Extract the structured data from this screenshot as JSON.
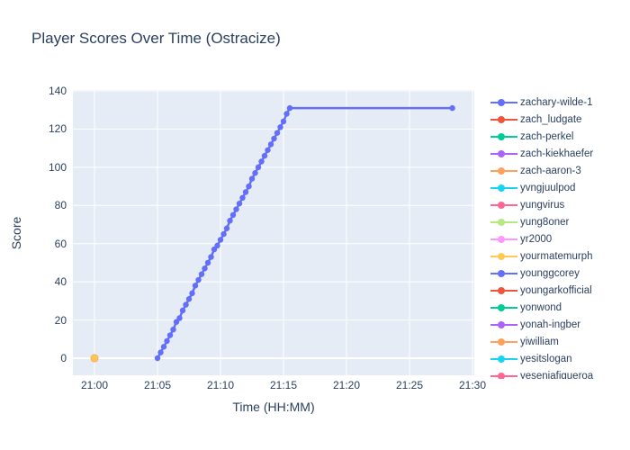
{
  "title": "Player Scores Over Time (Ostracize)",
  "x_axis": {
    "label": "Time (HH:MM)",
    "tick_labels": [
      "21:00",
      "21:05",
      "21:10",
      "21:15",
      "21:20",
      "21:25",
      "21:30"
    ],
    "tick_minutes": [
      0,
      5,
      10,
      15,
      20,
      25,
      30
    ]
  },
  "y_axis": {
    "label": "Score",
    "ticks": [
      0,
      20,
      40,
      60,
      80,
      100,
      120,
      140
    ]
  },
  "colors": {
    "paper_bg": "#ffffff",
    "plot_bg": "#e5ecf6",
    "grid": "#ffffff",
    "text": "#2a3f5f",
    "accent_line": "#636efa"
  },
  "legend": [
    {
      "label": "zachary-wilde-1",
      "color": "#636efa"
    },
    {
      "label": "zach_ludgate",
      "color": "#ef553b"
    },
    {
      "label": "zach-perkel",
      "color": "#00cc96"
    },
    {
      "label": "zach-kiekhaefer",
      "color": "#ab63fa"
    },
    {
      "label": "zach-aaron-3",
      "color": "#ffa15a"
    },
    {
      "label": "yvngjuulpod",
      "color": "#19d3f3"
    },
    {
      "label": "yungvirus",
      "color": "#ff6692"
    },
    {
      "label": "yung8oner",
      "color": "#b6e880"
    },
    {
      "label": "yr2000",
      "color": "#ff97ff"
    },
    {
      "label": "yourmatemurph",
      "color": "#fecb52"
    },
    {
      "label": "younggcorey",
      "color": "#636efa"
    },
    {
      "label": "youngarkofficial",
      "color": "#ef553b"
    },
    {
      "label": "yonwond",
      "color": "#00cc96"
    },
    {
      "label": "yonah-ingber",
      "color": "#ab63fa"
    },
    {
      "label": "yiwilliam",
      "color": "#ffa15a"
    },
    {
      "label": "yesitslogan",
      "color": "#19d3f3"
    },
    {
      "label": "yeseniafigueroa",
      "color": "#ff6692"
    }
  ],
  "chart_data": {
    "type": "line",
    "title": "Player Scores Over Time (Ostracize)",
    "xlabel": "Time (HH:MM)",
    "ylabel": "Score",
    "x_tick_labels": [
      "21:00",
      "21:05",
      "21:10",
      "21:15",
      "21:20",
      "21:25",
      "21:30"
    ],
    "ylim": [
      -9,
      141
    ],
    "xlim_minutes_after_2100": [
      -1.7,
      30.15
    ],
    "grid": true,
    "legend_position": "right",
    "series": [
      {
        "name": "zachary-wilde-1",
        "color": "#636efa",
        "mode": "lines+markers",
        "t_minutes_after_2100": [
          5.0,
          5.25,
          5.5,
          5.75,
          6.0,
          6.25,
          6.5,
          6.75,
          7.0,
          7.25,
          7.5,
          7.75,
          8.0,
          8.25,
          8.5,
          8.75,
          9.0,
          9.25,
          9.5,
          9.75,
          10.0,
          10.25,
          10.5,
          10.75,
          11.0,
          11.25,
          11.5,
          11.75,
          12.0,
          12.25,
          12.5,
          12.75,
          13.0,
          13.25,
          13.5,
          13.75,
          14.0,
          14.25,
          14.5,
          14.75,
          15.0,
          15.25,
          15.5,
          28.4
        ],
        "scores": [
          0,
          3,
          6,
          9,
          12,
          15,
          19,
          21,
          25,
          28,
          31,
          34,
          38,
          41,
          44,
          47,
          50,
          53,
          57,
          59,
          62,
          65,
          68,
          72,
          75,
          78,
          81,
          84,
          87,
          90,
          94,
          97,
          100,
          103,
          106,
          109,
          112,
          115,
          118,
          121,
          124,
          128,
          131,
          131
        ]
      },
      {
        "name": "zach_ludgate",
        "color": "#ef553b",
        "mode": "markers",
        "points": [
          [
            0,
            0
          ]
        ],
        "marker_size": 7,
        "z": 1
      },
      {
        "name": "zach-perkel",
        "color": "#00cc96",
        "mode": "markers",
        "points": [
          [
            0,
            0
          ]
        ],
        "marker_size": 7,
        "z": 1
      },
      {
        "name": "zach-kiekhaefer",
        "color": "#ab63fa",
        "mode": "markers",
        "points": [
          [
            0,
            0
          ]
        ],
        "marker_size": 7,
        "z": 1
      },
      {
        "name": "zach-aaron-3",
        "color": "#ffa15a",
        "mode": "markers",
        "points": [
          [
            0,
            0
          ]
        ],
        "marker_size": 9,
        "z": 2
      },
      {
        "name": "yvngjuulpod",
        "color": "#19d3f3",
        "mode": "markers",
        "points": [
          [
            0,
            0
          ]
        ],
        "marker_size": 7,
        "z": 1
      },
      {
        "name": "yungvirus",
        "color": "#ff6692",
        "mode": "markers",
        "points": [
          [
            0,
            0
          ]
        ],
        "marker_size": 7,
        "z": 1
      },
      {
        "name": "yung8oner",
        "color": "#b6e880",
        "mode": "markers",
        "points": [
          [
            0,
            0
          ]
        ],
        "marker_size": 7,
        "z": 1
      },
      {
        "name": "yr2000",
        "color": "#ff97ff",
        "mode": "markers",
        "points": [
          [
            0,
            0
          ]
        ],
        "marker_size": 7,
        "z": 1
      },
      {
        "name": "yourmatemurph",
        "color": "#fecb52",
        "mode": "markers",
        "points": [
          [
            0,
            0
          ]
        ],
        "marker_size": 7,
        "z": 3
      },
      {
        "name": "younggcorey",
        "color": "#636efa",
        "mode": "markers",
        "points": [
          [
            0,
            0
          ]
        ],
        "marker_size": 7,
        "z": 1
      },
      {
        "name": "youngarkofficial",
        "color": "#ef553b",
        "mode": "markers",
        "points": [
          [
            0,
            0
          ]
        ],
        "marker_size": 7,
        "z": 1
      },
      {
        "name": "yonwond",
        "color": "#00cc96",
        "mode": "markers",
        "points": [
          [
            0,
            0
          ]
        ],
        "marker_size": 7,
        "z": 1
      },
      {
        "name": "yonah-ingber",
        "color": "#ab63fa",
        "mode": "markers",
        "points": [
          [
            0,
            0
          ]
        ],
        "marker_size": 7,
        "z": 1
      },
      {
        "name": "yiwilliam",
        "color": "#ffa15a",
        "mode": "markers",
        "points": [
          [
            0,
            0
          ]
        ],
        "marker_size": 7,
        "z": 1
      },
      {
        "name": "yesitslogan",
        "color": "#19d3f3",
        "mode": "markers",
        "points": [
          [
            0,
            0
          ]
        ],
        "marker_size": 7,
        "z": 1
      },
      {
        "name": "yeseniafigueroa",
        "color": "#ff6692",
        "mode": "markers",
        "points": [
          [
            0,
            0
          ]
        ],
        "marker_size": 7,
        "z": 1
      }
    ]
  }
}
